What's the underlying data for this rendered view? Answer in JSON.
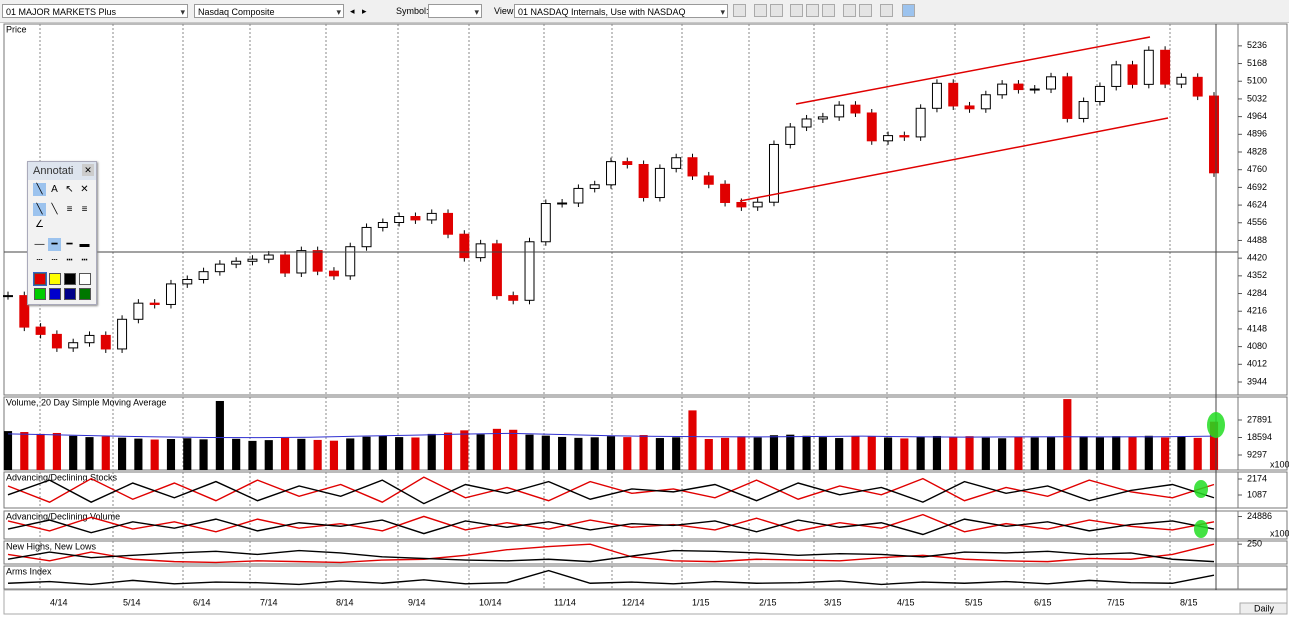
{
  "toolbar": {
    "layout": "01 MAJOR MARKETS Plus",
    "symbol_name": "Nasdaq Composite",
    "symbol_label": "Symbol:",
    "view_label": "View:",
    "view": "01 NASDAQ Internals, Use with NASDAQ"
  },
  "annotation_palette": {
    "title": "Annotati"
  },
  "time_axis": {
    "labels": [
      "4/14",
      "5/14",
      "6/14",
      "7/14",
      "8/14",
      "9/14",
      "10/14",
      "11/14",
      "12/14",
      "1/15",
      "2/15",
      "3/15",
      "4/15",
      "5/15",
      "6/15",
      "7/15",
      "8/15"
    ],
    "period": "Daily"
  },
  "chart_data": [
    {
      "type": "candlestick",
      "title": "Price",
      "up_color": "#ffffff",
      "down_color": "#e00000",
      "values": [
        4276,
        4155,
        4127,
        4075,
        4095,
        4123,
        4071,
        4185,
        4247,
        4242,
        4321,
        4338,
        4368,
        4397,
        4408,
        4416,
        4432,
        4363,
        4449,
        4370,
        4352,
        4464,
        4538,
        4557,
        4580,
        4567,
        4592,
        4512,
        4422,
        4475,
        4276,
        4258,
        4483,
        4630,
        4632,
        4688,
        4702,
        4791,
        4780,
        4653,
        4765,
        4806,
        4736,
        4704,
        4634,
        4617,
        4635,
        4857,
        4924,
        4955,
        4963,
        5008,
        4978,
        4871,
        4891,
        4886,
        4996,
        5092,
        5005,
        4994,
        5048,
        5089,
        5068,
        5070,
        5117,
        4957,
        5022,
        5080,
        5163,
        5088,
        5219,
        5089,
        5115,
        5043,
        4748
      ],
      "ylim": [
        3894,
        5320
      ],
      "yticks": [
        3944,
        4012,
        4080,
        4148,
        4216,
        4284,
        4352,
        4420,
        4488,
        4556,
        4624,
        4692,
        4760,
        4828,
        4896,
        4964,
        5032,
        5100,
        5168,
        5236
      ]
    },
    {
      "type": "bar",
      "title": "Volume, 20 Day Simple Moving Average",
      "unit_label": "x100",
      "up_color": "#000000",
      "down_color": "#e00000",
      "ma_color": "#3030d0",
      "values": [
        22000,
        21500,
        20500,
        21000,
        19500,
        18800,
        19200,
        18500,
        18000,
        17500,
        17800,
        18200,
        17600,
        38000,
        17900,
        16800,
        17200,
        18400,
        17900,
        17300,
        16900,
        18100,
        19000,
        19400,
        18800,
        18600,
        20500,
        21200,
        22400,
        20300,
        23200,
        22700,
        20100,
        19600,
        18900,
        18400,
        18700,
        19300,
        18800,
        19900,
        18300,
        18700,
        33000,
        17800,
        18400,
        19200,
        18600,
        19800,
        20100,
        19500,
        18800,
        18300,
        19400,
        19100,
        18600,
        18100,
        18900,
        19400,
        18700,
        19300,
        18500,
        18200,
        19000,
        18600,
        18800,
        39000,
        19200,
        18700,
        19300,
        18900,
        19500,
        18600,
        19100,
        18400,
        27000
      ],
      "ma": [
        20500,
        20000,
        19400,
        18900,
        18600,
        18500,
        18700,
        19300,
        19800,
        20400,
        20800,
        20200,
        19500,
        19200,
        19000,
        18900,
        19100,
        19300,
        19000,
        18800,
        18900,
        19000,
        18900,
        19000,
        19300
      ],
      "ylim": [
        1328,
        40110
      ],
      "yticks": [
        9297,
        18594,
        27891
      ]
    },
    {
      "type": "line",
      "title": "Advancing/Declining Stocks",
      "ylim": [
        204,
        2650
      ],
      "yticks": [
        1087,
        2174
      ],
      "series": [
        {
          "color": "#e00000",
          "values": [
            1700,
            600,
            2200,
            800,
            1900,
            700,
            2100,
            1000,
            1800,
            600,
            2300,
            900,
            1600,
            700,
            2000,
            1200,
            1500,
            900,
            2100,
            800,
            1700,
            1100,
            2200,
            700,
            1600,
            1000,
            2100,
            1300,
            900,
            1800
          ]
        },
        {
          "color": "#000000",
          "values": [
            1100,
            2100,
            600,
            1900,
            900,
            2000,
            700,
            1700,
            1000,
            2100,
            500,
            1800,
            1200,
            2000,
            800,
            1500,
            1300,
            1800,
            700,
            1900,
            1100,
            1600,
            600,
            2000,
            1200,
            1700,
            700,
            1400,
            1800,
            900
          ]
        }
      ]
    },
    {
      "type": "line",
      "title": "Advancing/Declining Volume",
      "unit_label": "x100",
      "ylim": [
        0,
        31000
      ],
      "yticks": [
        24886
      ],
      "series": [
        {
          "color": "#e00000",
          "values": [
            20000,
            9000,
            24000,
            11000,
            19000,
            8000,
            22000,
            12000,
            17000,
            9000,
            25000,
            10000,
            18000,
            11000,
            21000,
            13000,
            16000,
            10000,
            23000,
            9000,
            18000,
            12000,
            27000,
            8000,
            17000,
            11000,
            21000,
            14000,
            10000,
            19000
          ]
        },
        {
          "color": "#000000",
          "values": [
            11000,
            21000,
            7000,
            19000,
            12000,
            22000,
            9000,
            18000,
            14000,
            21000,
            6000,
            20000,
            13000,
            19000,
            10000,
            17000,
            15000,
            20000,
            8000,
            21000,
            13000,
            18000,
            5000,
            22000,
            14000,
            19000,
            9000,
            16000,
            20000,
            11000
          ]
        }
      ]
    },
    {
      "type": "line",
      "title": "New Highs, New Lows",
      "ylim": [
        0,
        290
      ],
      "yticks": [
        250
      ],
      "series": [
        {
          "color": "#e00000",
          "values": [
            120,
            40,
            150,
            60,
            30,
            20,
            40,
            30,
            20,
            50,
            60,
            110,
            180,
            220,
            250,
            90,
            40,
            30,
            60,
            50,
            40,
            80,
            110,
            60,
            40,
            30,
            70,
            60,
            120,
            250
          ]
        },
        {
          "color": "#000000",
          "values": [
            60,
            150,
            80,
            110,
            140,
            160,
            120,
            170,
            140,
            90,
            70,
            50,
            40,
            60,
            30,
            100,
            170,
            160,
            140,
            110,
            130,
            120,
            90,
            150,
            140,
            160,
            120,
            140,
            60,
            30
          ]
        }
      ]
    },
    {
      "type": "line",
      "title": "Arms Index",
      "ylim": [
        0,
        4
      ],
      "yticks": [],
      "series": [
        {
          "color": "#000000",
          "values": [
            1.0,
            1.3,
            0.8,
            1.5,
            0.9,
            1.2,
            1.1,
            0.8,
            1.4,
            1.0,
            1.6,
            0.9,
            1.1,
            3.2,
            1.0,
            1.2,
            0.9,
            1.3,
            1.0,
            1.1,
            1.4,
            0.8,
            1.2,
            1.0,
            1.3,
            0.9,
            1.5,
            1.1,
            1.0,
            2.4
          ]
        }
      ]
    }
  ]
}
